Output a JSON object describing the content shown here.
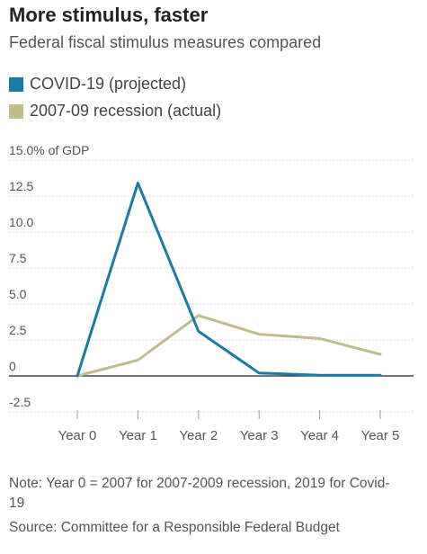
{
  "title": "More stimulus, faster",
  "subtitle": "Federal fiscal stimulus measures compared",
  "colors": {
    "covid": "#1a7ba7",
    "recession": "#c2bb8d",
    "grid": "#c8c8c8",
    "axis": "#222222",
    "text": "#555555"
  },
  "chart_data": {
    "type": "line",
    "categories": [
      "Year 0",
      "Year 1",
      "Year 2",
      "Year 3",
      "Year 4",
      "Year 5"
    ],
    "series": [
      {
        "name": "COVID-19 (projected)",
        "values": [
          0,
          13.4,
          3.1,
          0.2,
          0.05,
          0.05
        ]
      },
      {
        "name": "2007-09 recession (actual)",
        "values": [
          0,
          1.1,
          4.2,
          2.9,
          2.6,
          1.5
        ]
      }
    ],
    "y_ticks": [
      15.0,
      12.5,
      10.0,
      7.5,
      5.0,
      2.5,
      0,
      -2.5
    ],
    "y_tick_labels": [
      "15.0% of GDP",
      "12.5",
      "10.0",
      "7.5",
      "5.0",
      "2.5",
      "0",
      "-2.5"
    ],
    "ylim": [
      -2.5,
      15.0
    ],
    "grid": true,
    "legend_position": "top-left"
  },
  "note": "Note: Year 0 = 2007 for 2007-2009 recession, 2019 for Covid-19",
  "source": "Source: Committee for a Responsible Federal Budget"
}
